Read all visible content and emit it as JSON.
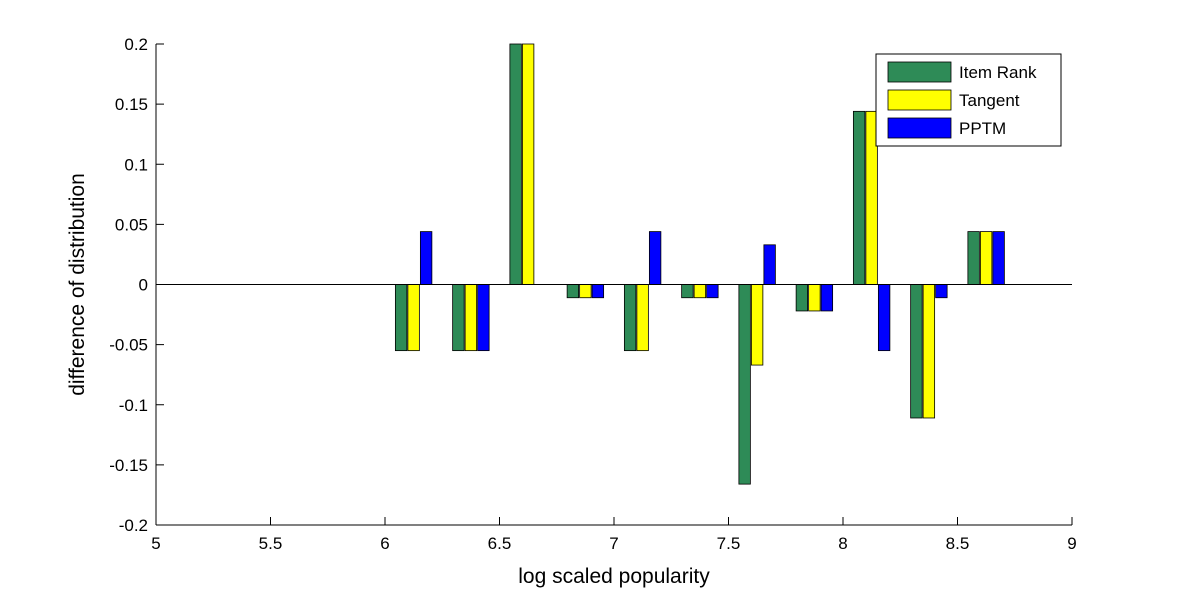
{
  "chart_data": {
    "type": "bar",
    "title": "",
    "xlabel": "log scaled popularity",
    "ylabel": "difference of distribution",
    "xlim": [
      5,
      9
    ],
    "ylim": [
      -0.2,
      0.2
    ],
    "xticks": [
      "5",
      "5.5",
      "6",
      "6.5",
      "7",
      "7.5",
      "8",
      "8.5",
      "9"
    ],
    "yticks": [
      "-0.2",
      "-0.15",
      "-0.1",
      "-0.05",
      "0",
      "0.05",
      "0.1",
      "0.15",
      "0.2"
    ],
    "grid": false,
    "legend_position": "top-right",
    "x": [
      6.125,
      6.375,
      6.625,
      6.875,
      7.125,
      7.375,
      7.625,
      7.875,
      8.125,
      8.375,
      8.625
    ],
    "series": [
      {
        "name": "Item Rank",
        "color": "#2e8b57",
        "values": [
          -0.055,
          -0.055,
          0.2,
          -0.011,
          -0.055,
          -0.011,
          -0.166,
          -0.022,
          0.144,
          -0.111,
          0.044
        ]
      },
      {
        "name": "Tangent",
        "color": "#ffff00",
        "values": [
          -0.055,
          -0.055,
          0.2,
          -0.011,
          -0.055,
          -0.011,
          -0.067,
          -0.022,
          0.144,
          -0.111,
          0.044
        ]
      },
      {
        "name": "PPTM",
        "color": "#0000ff",
        "values": [
          0.044,
          -0.055,
          0.0,
          -0.011,
          0.044,
          -0.011,
          0.033,
          -0.022,
          -0.055,
          -0.011,
          0.044
        ]
      }
    ]
  }
}
